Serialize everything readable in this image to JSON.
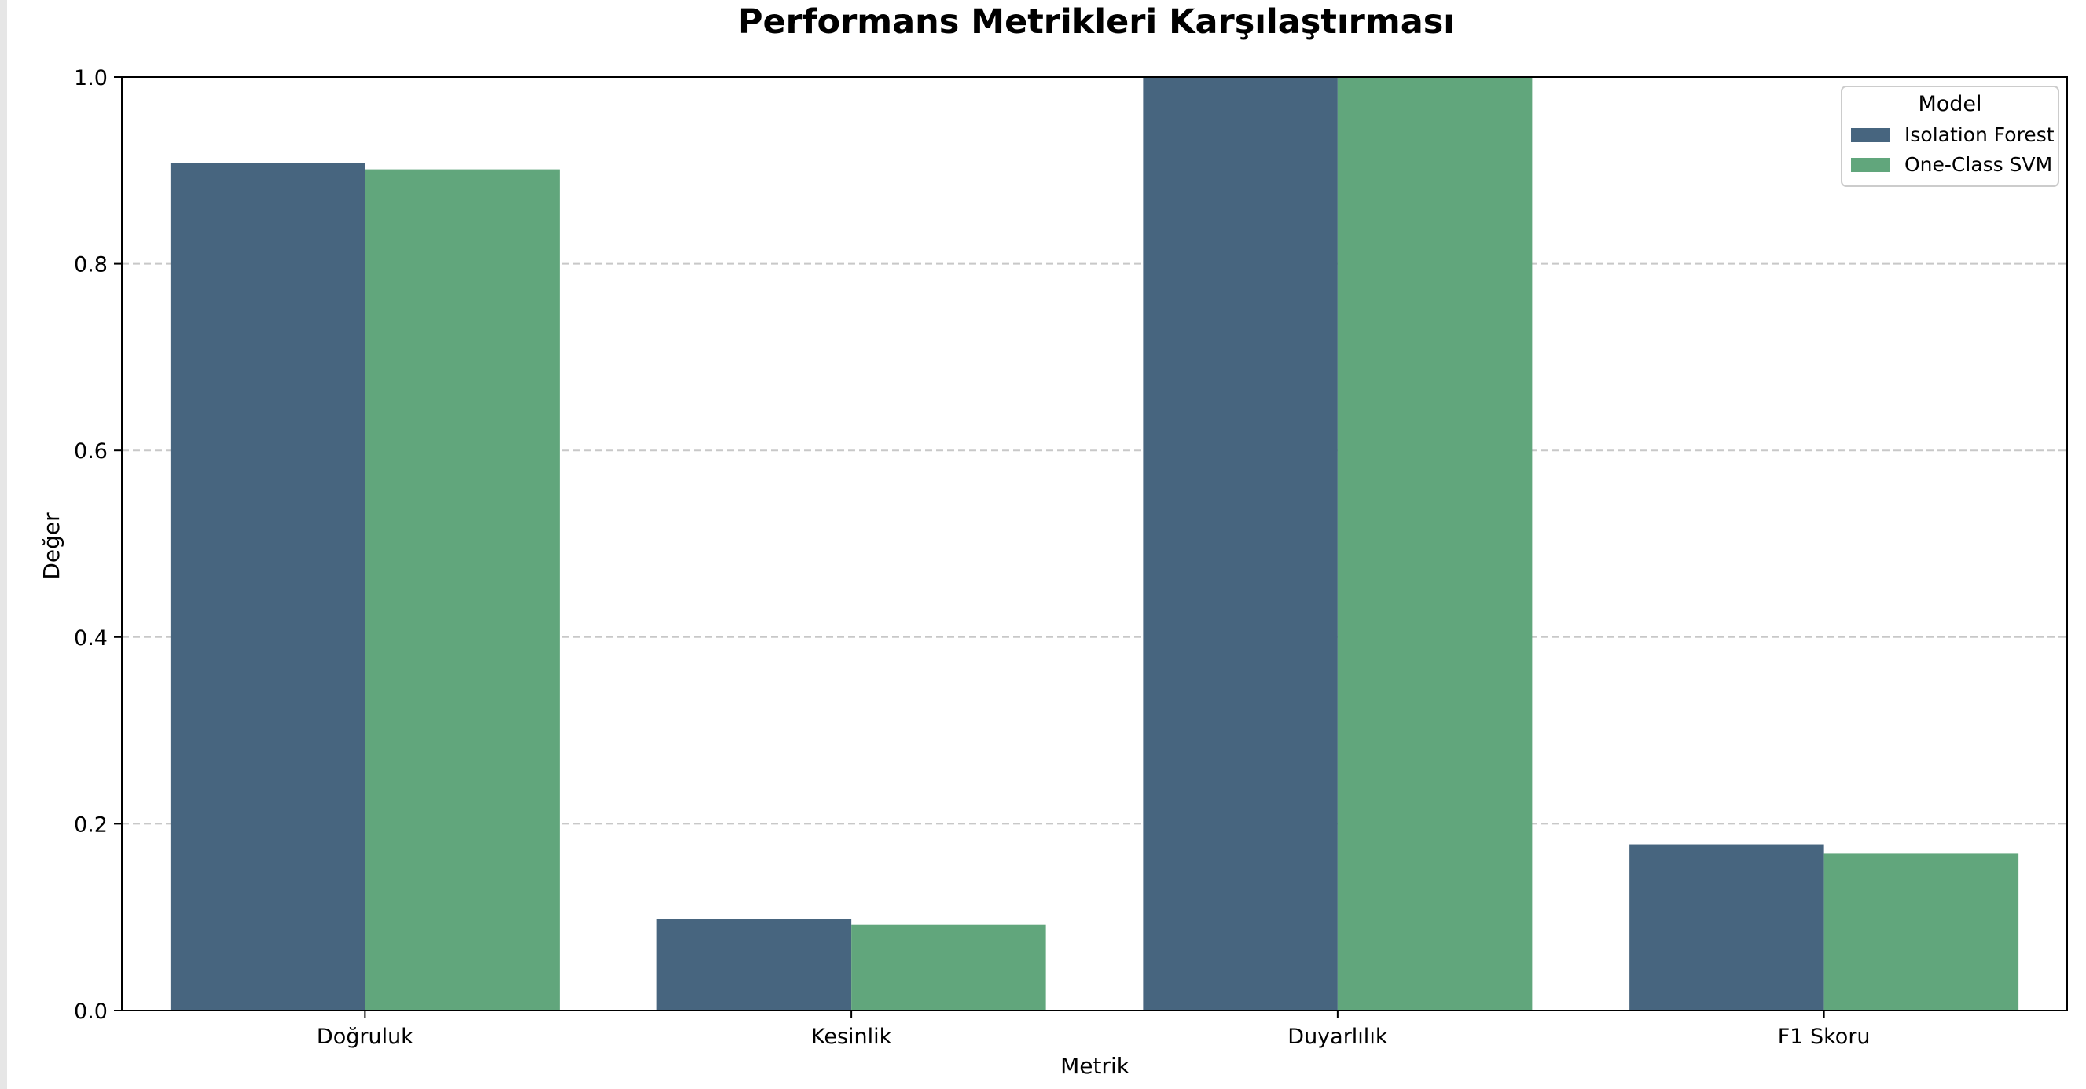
{
  "chart_data": {
    "type": "bar",
    "title": "Performans Metrikleri Karşılaştırması",
    "xlabel": "Metrik",
    "ylabel": "Değer",
    "categories": [
      "Doğruluk",
      "Kesinlik",
      "Duyarlılık",
      "F1 Skoru"
    ],
    "series": [
      {
        "name": "Isolation Forest",
        "values": [
          0.908,
          0.098,
          1.0,
          0.178
        ],
        "color": "#47657f"
      },
      {
        "name": "One-Class SVM",
        "values": [
          0.901,
          0.092,
          1.0,
          0.168
        ],
        "color": "#61a67c"
      }
    ],
    "ylim": [
      0.0,
      1.0
    ],
    "yticks": [
      "0.0",
      "0.2",
      "0.4",
      "0.6",
      "0.8",
      "1.0"
    ],
    "grid": "y-dashed",
    "legend": {
      "title": "Model",
      "placement": "top-right"
    }
  }
}
